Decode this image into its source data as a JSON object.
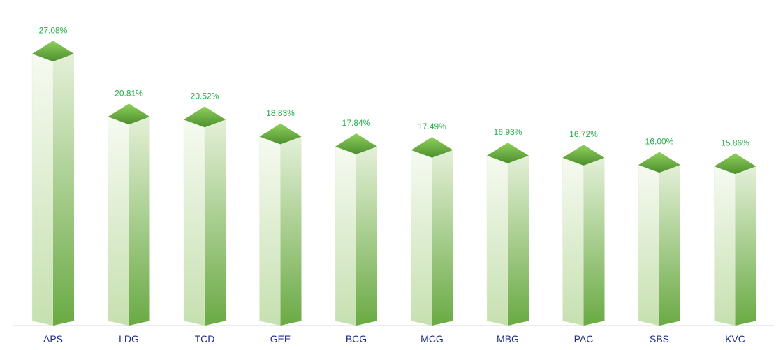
{
  "chart_data": {
    "type": "bar",
    "categories": [
      "APS",
      "LDG",
      "TCD",
      "GEE",
      "BCG",
      "MCG",
      "MBG",
      "PAC",
      "SBS",
      "KVC"
    ],
    "values": [
      27.08,
      20.81,
      20.52,
      18.83,
      17.84,
      17.49,
      16.93,
      16.72,
      16.0,
      15.86
    ],
    "value_labels": [
      "27.08%",
      "20.81%",
      "20.52%",
      "18.83%",
      "17.84%",
      "17.49%",
      "16.93%",
      "16.72%",
      "16.00%",
      "15.86%"
    ],
    "ylim": [
      0,
      27.08
    ],
    "grid": false,
    "legend": "none",
    "style": "3d-prism",
    "colors": {
      "label_value": "#22b04a",
      "label_category": "#1f2d8a",
      "top_light": "#8fd05c",
      "top_dark": "#4d8f2e",
      "face_light": "#f4f9ee",
      "face_dark": "#6aaa44",
      "baseline": "#d9d9d9"
    }
  }
}
